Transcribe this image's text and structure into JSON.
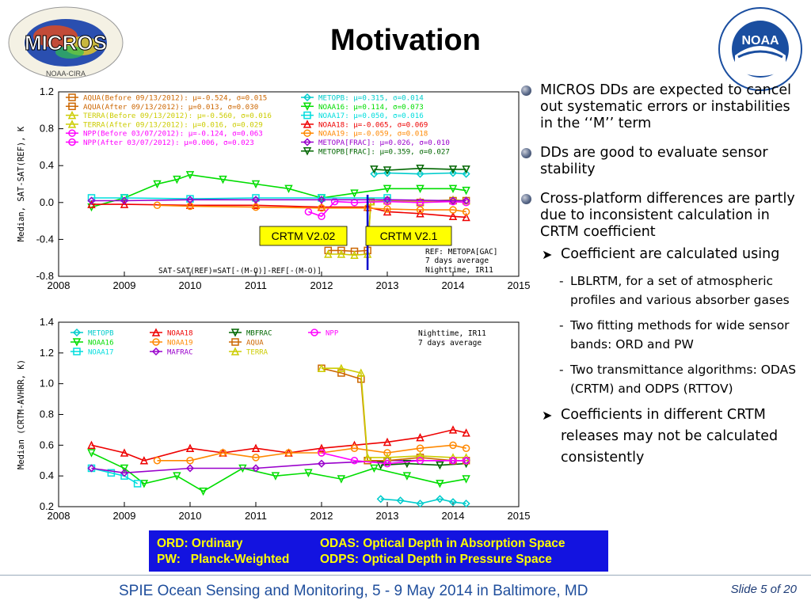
{
  "slide": {
    "title": "Motivation",
    "logo_left_text": "MICROS",
    "logo_left_sub": "NOAA-CIRA",
    "logo_right_text": "NOAA",
    "bullets": [
      "MICROS DDs are expected to cancel out systematic errors or instabilities in the ‘‘M’’ term",
      "DDs are good to evaluate sensor stability",
      "Cross-platform differences are partly due to inconsistent calculation in CRTM coefficient"
    ],
    "sub_bullets": [
      "Coefficient are calculated using",
      "Coefficients in different CRTM releases may not be calculated consistently"
    ],
    "dash_items": [
      "LBLRTM, for a set of atmospheric profiles and various absorber gases",
      "Two fitting methods for wide sensor bands: ORD and PW",
      "Two transmittance algorithms: ODAS (CRTM) and ODPS (RTTOV)"
    ],
    "abbrev_box": {
      "r1c1": "ORD: Ordinary",
      "r1c2": "ODAS: Optical Depth in Absorption Space",
      "r2c1": "PW:   Planck-Weighted",
      "r2c2": "ODPS: Optical Depth in Pressure Space"
    },
    "footer": "SPIE Ocean Sensing and Monitoring, 5 - 9 May 2014 in Baltimore, MD",
    "slide_number": "Slide 5 of 20"
  },
  "chart_data": [
    {
      "type": "line",
      "title": "",
      "xlabel": "",
      "ylabel": "Median, SAT-SAT(REF), K",
      "xlim": [
        2008,
        2015
      ],
      "ylim": [
        -0.8,
        1.2
      ],
      "xticks": [
        "2008",
        "2009",
        "2010",
        "2011",
        "2012",
        "2013",
        "2014",
        "2015"
      ],
      "yticks": [
        "1.2",
        "0.8",
        "0.4",
        "0.0",
        "-0.4",
        "-0.8"
      ],
      "legend": [
        {
          "text": "AQUA(Before 09/13/2012): μ=-0.524, σ=0.015",
          "color": "#cc6600",
          "marker": "square"
        },
        {
          "text": "AQUA(After 09/13/2012): μ=0.013, σ=0.030",
          "color": "#cc6600",
          "marker": "square"
        },
        {
          "text": "TERRA(Before 09/13/2012): μ=-0.560, σ=0.016",
          "color": "#cccc00",
          "marker": "triangle"
        },
        {
          "text": "TERRA(After 09/13/2012): μ=0.016, σ=0.029",
          "color": "#cccc00",
          "marker": "triangle"
        },
        {
          "text": "NPP(Before 03/07/2012): μ=-0.124, σ=0.063",
          "color": "#ff00ff",
          "marker": "circle"
        },
        {
          "text": "NPP(After 03/07/2012): μ=0.006, σ=0.023",
          "color": "#ff00ff",
          "marker": "circle"
        },
        {
          "text": "METOPB: μ=0.315, σ=0.014",
          "color": "#00cccc",
          "marker": "diamond"
        },
        {
          "text": "NOAA16: μ=0.114, σ=0.073",
          "color": "#00dd00",
          "marker": "tridown"
        },
        {
          "text": "NOAA17: μ=0.050, σ=0.016",
          "color": "#00dddd",
          "marker": "square"
        },
        {
          "text": "NOAA18: μ=-0.065, σ=0.069",
          "color": "#ee0000",
          "marker": "triangle"
        },
        {
          "text": "NOAA19: μ=-0.059, σ=0.018",
          "color": "#ff8800",
          "marker": "circle"
        },
        {
          "text": "METOPA[FRAC]: μ=0.026, σ=0.010",
          "color": "#9900cc",
          "marker": "diamond"
        },
        {
          "text": "METOPB[FRAC]: μ=0.359, σ=0.027",
          "color": "#006600",
          "marker": "tridown"
        }
      ],
      "annotations": [
        "SAT-SAT(REF)=SAT[-(M-O)]-REF[-(M-O)]",
        "REF: METOPA[GAC]",
        "7 days average",
        "Nighttime, IR11",
        "CRTM V2.02",
        "CRTM V2.1"
      ],
      "vline_x": 2012.7,
      "series": [
        {
          "name": "AQUA",
          "color": "#cc6600",
          "x": [
            2012.1,
            2012.3,
            2012.5,
            2012.7,
            2012.75,
            2013.0,
            2013.5,
            2014.0,
            2014.2
          ],
          "y": [
            -0.52,
            -0.52,
            -0.53,
            -0.52,
            0.01,
            0.02,
            0.0,
            0.02,
            0.02
          ]
        },
        {
          "name": "TERRA",
          "color": "#cccc00",
          "x": [
            2012.1,
            2012.3,
            2012.5,
            2012.7,
            2012.75,
            2013.0,
            2013.5,
            2014.0,
            2014.2
          ],
          "y": [
            -0.56,
            -0.56,
            -0.57,
            -0.56,
            0.01,
            0.02,
            0.01,
            0.03,
            0.02
          ]
        },
        {
          "name": "NPP",
          "color": "#ff00ff",
          "x": [
            2011.8,
            2012.0,
            2012.2,
            2012.5,
            2013.0,
            2013.5,
            2014.0,
            2014.2
          ],
          "y": [
            -0.1,
            -0.15,
            0.01,
            0.0,
            0.01,
            0.0,
            0.01,
            0.0
          ]
        },
        {
          "name": "METOPB",
          "color": "#00cccc",
          "x": [
            2012.8,
            2013.0,
            2013.5,
            2014.0,
            2014.2
          ],
          "y": [
            0.31,
            0.32,
            0.31,
            0.32,
            0.31
          ]
        },
        {
          "name": "NOAA16",
          "color": "#00dd00",
          "x": [
            2008.5,
            2009.0,
            2009.5,
            2009.8,
            2010.0,
            2010.5,
            2011.0,
            2011.5,
            2012.0,
            2012.5,
            2013.0,
            2013.5,
            2014.0,
            2014.2
          ],
          "y": [
            -0.05,
            0.05,
            0.2,
            0.25,
            0.3,
            0.25,
            0.2,
            0.15,
            0.05,
            0.1,
            0.15,
            0.15,
            0.15,
            0.13
          ]
        },
        {
          "name": "NOAA17",
          "color": "#00dddd",
          "x": [
            2008.5,
            2009.0,
            2010.0,
            2011.0,
            2012.0,
            2013.0
          ],
          "y": [
            0.05,
            0.05,
            0.04,
            0.05,
            0.05,
            0.05
          ]
        },
        {
          "name": "NOAA18",
          "color": "#ee0000",
          "x": [
            2008.5,
            2009.0,
            2010.0,
            2011.0,
            2012.0,
            2012.7,
            2013.0,
            2013.5,
            2014.0,
            2014.2
          ],
          "y": [
            -0.02,
            -0.02,
            -0.03,
            -0.03,
            -0.05,
            -0.05,
            -0.1,
            -0.12,
            -0.15,
            -0.16
          ]
        },
        {
          "name": "NOAA19",
          "color": "#ff8800",
          "x": [
            2009.5,
            2010.0,
            2011.0,
            2012.0,
            2012.7,
            2013.0,
            2013.5,
            2014.0,
            2014.2
          ],
          "y": [
            -0.03,
            -0.04,
            -0.05,
            -0.06,
            -0.06,
            -0.07,
            -0.08,
            -0.08,
            -0.1
          ]
        },
        {
          "name": "METOPA[FRAC]",
          "color": "#9900cc",
          "x": [
            2008.5,
            2009.0,
            2010.0,
            2011.0,
            2012.0,
            2013.0,
            2014.0,
            2014.2
          ],
          "y": [
            0.02,
            0.02,
            0.03,
            0.03,
            0.03,
            0.03,
            0.02,
            0.02
          ]
        },
        {
          "name": "METOPB[FRAC]",
          "color": "#006600",
          "x": [
            2012.8,
            2013.0,
            2013.5,
            2014.0,
            2014.2
          ],
          "y": [
            0.36,
            0.35,
            0.37,
            0.36,
            0.36
          ]
        }
      ]
    },
    {
      "type": "line",
      "title": "",
      "xlabel": "",
      "ylabel": "Median (CRTM-AVHRR, K)",
      "xlim": [
        2008,
        2015
      ],
      "ylim": [
        0.2,
        1.4
      ],
      "xticks": [
        "2008",
        "2009",
        "2010",
        "2011",
        "2012",
        "2013",
        "2014",
        "2015"
      ],
      "yticks": [
        "1.4",
        "1.2",
        "1.0",
        "0.8",
        "0.6",
        "0.4",
        "0.2"
      ],
      "legend": [
        {
          "text": "METOPB",
          "color": "#00cccc",
          "marker": "diamond"
        },
        {
          "text": "NOAA16",
          "color": "#00dd00",
          "marker": "tridown"
        },
        {
          "text": "NOAA17",
          "color": "#00dddd",
          "marker": "square"
        },
        {
          "text": "NOAA18",
          "color": "#ee0000",
          "marker": "triangle"
        },
        {
          "text": "NOAA19",
          "color": "#ff8800",
          "marker": "circle"
        },
        {
          "text": "MAFRAC",
          "color": "#9900cc",
          "marker": "diamond"
        },
        {
          "text": "MBFRAC",
          "color": "#006600",
          "marker": "tridown"
        },
        {
          "text": "AQUA",
          "color": "#cc6600",
          "marker": "square"
        },
        {
          "text": "TERRA",
          "color": "#cccc00",
          "marker": "triangle"
        },
        {
          "text": "NPP",
          "color": "#ff00ff",
          "marker": "circle"
        }
      ],
      "annotations": [
        "Nighttime, IR11",
        "7 days average"
      ],
      "series": [
        {
          "name": "METOPB",
          "color": "#00cccc",
          "x": [
            2012.9,
            2013.2,
            2013.5,
            2013.8,
            2014.0,
            2014.2
          ],
          "y": [
            0.25,
            0.24,
            0.22,
            0.25,
            0.23,
            0.22
          ]
        },
        {
          "name": "NOAA16",
          "color": "#00dd00",
          "x": [
            2008.5,
            2009.0,
            2009.3,
            2009.8,
            2010.2,
            2010.8,
            2011.3,
            2011.8,
            2012.3,
            2012.8,
            2013.3,
            2013.8,
            2014.2
          ],
          "y": [
            0.55,
            0.45,
            0.35,
            0.4,
            0.3,
            0.45,
            0.4,
            0.42,
            0.38,
            0.45,
            0.4,
            0.35,
            0.38
          ]
        },
        {
          "name": "NOAA17",
          "color": "#00dddd",
          "x": [
            2008.5,
            2008.8,
            2009.0,
            2009.2
          ],
          "y": [
            0.45,
            0.42,
            0.4,
            0.35
          ]
        },
        {
          "name": "NOAA18",
          "color": "#ee0000",
          "x": [
            2008.5,
            2009.0,
            2009.3,
            2010.0,
            2010.5,
            2011.0,
            2011.5,
            2012.0,
            2012.5,
            2013.0,
            2013.5,
            2014.0,
            2014.2
          ],
          "y": [
            0.6,
            0.55,
            0.5,
            0.58,
            0.55,
            0.58,
            0.55,
            0.58,
            0.6,
            0.62,
            0.65,
            0.7,
            0.68
          ]
        },
        {
          "name": "NOAA19",
          "color": "#ff8800",
          "x": [
            2009.5,
            2010.0,
            2010.5,
            2011.0,
            2011.5,
            2012.0,
            2012.5,
            2013.0,
            2013.5,
            2014.0,
            2014.2
          ],
          "y": [
            0.5,
            0.5,
            0.55,
            0.52,
            0.55,
            0.55,
            0.58,
            0.55,
            0.58,
            0.6,
            0.58
          ]
        },
        {
          "name": "MAFRAC",
          "color": "#9900cc",
          "x": [
            2008.5,
            2009.0,
            2010.0,
            2011.0,
            2012.0,
            2013.0,
            2014.0,
            2014.2
          ],
          "y": [
            0.45,
            0.42,
            0.45,
            0.45,
            0.48,
            0.5,
            0.5,
            0.5
          ]
        },
        {
          "name": "MBFRAC",
          "color": "#006600",
          "x": [
            2012.9,
            2013.3,
            2013.8,
            2014.2
          ],
          "y": [
            0.47,
            0.48,
            0.47,
            0.48
          ]
        },
        {
          "name": "AQUA",
          "color": "#cc6600",
          "x": [
            2012.0,
            2012.3,
            2012.6,
            2012.7,
            2013.0,
            2013.5,
            2014.0,
            2014.2
          ],
          "y": [
            1.1,
            1.07,
            1.03,
            0.5,
            0.5,
            0.52,
            0.5,
            0.5
          ]
        },
        {
          "name": "TERRA",
          "color": "#cccc00",
          "x": [
            2012.0,
            2012.3,
            2012.6,
            2012.7,
            2013.0,
            2013.5,
            2014.0,
            2014.2
          ],
          "y": [
            1.1,
            1.1,
            1.07,
            0.52,
            0.52,
            0.53,
            0.52,
            0.52
          ]
        },
        {
          "name": "NPP",
          "color": "#ff00ff",
          "x": [
            2012.0,
            2012.5,
            2013.0,
            2013.5,
            2014.0,
            2014.2
          ],
          "y": [
            0.55,
            0.5,
            0.48,
            0.5,
            0.5,
            0.5
          ]
        }
      ]
    }
  ]
}
